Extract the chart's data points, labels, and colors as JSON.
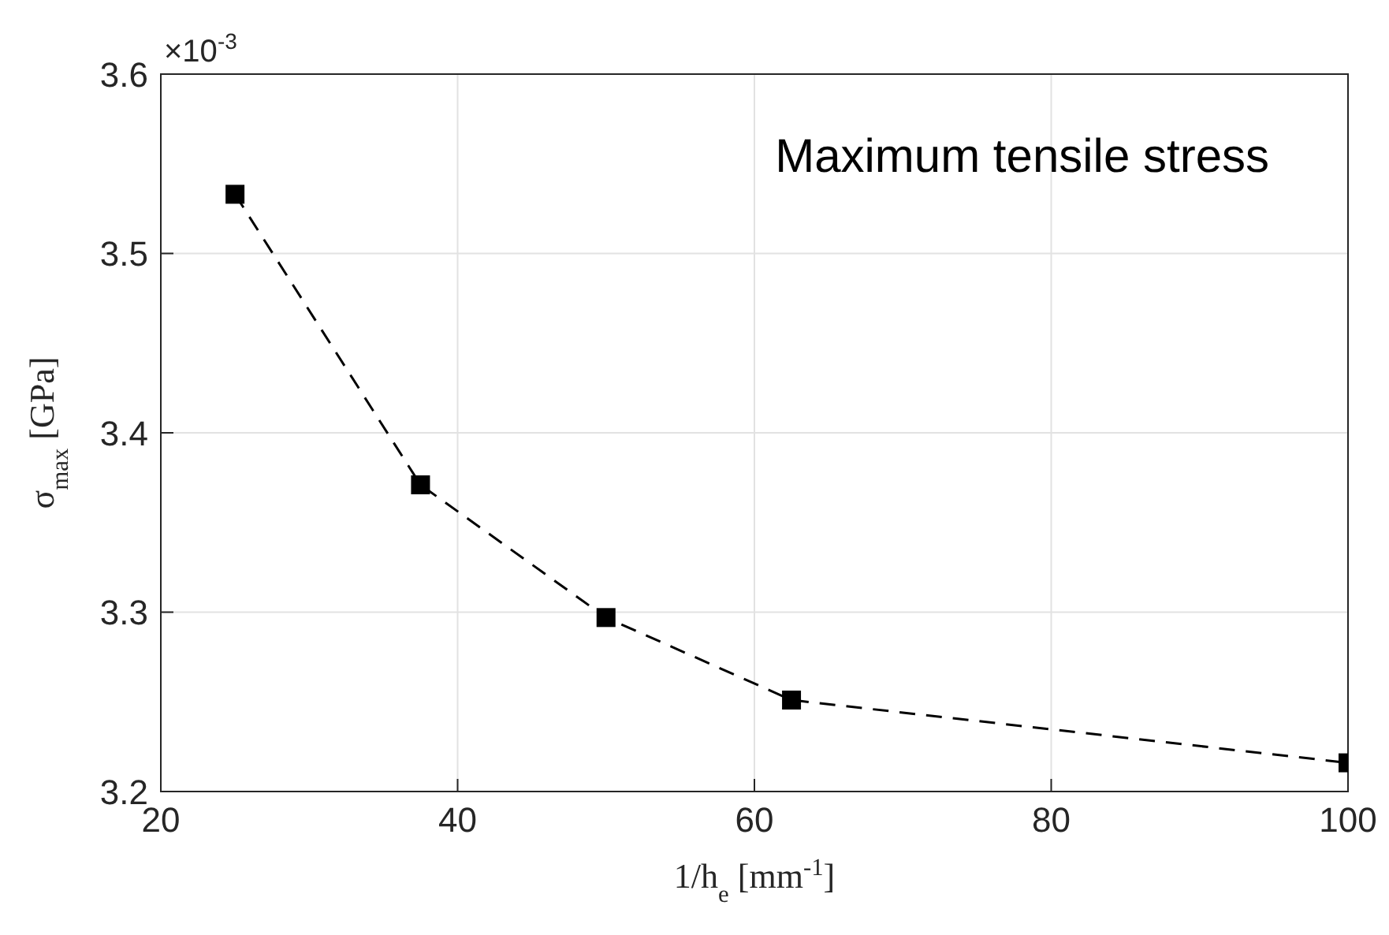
{
  "chart_data": {
    "type": "line",
    "title": "Maximum tensile stress",
    "xlabel": "1/h$_{e}$ [mm$^{-1}$]",
    "ylabel": "σ$_{max}$ [GPa]",
    "annotations": [
      "×10$^{-3}$"
    ],
    "x": [
      25,
      37.5,
      50,
      62.5,
      100
    ],
    "series": [
      {
        "color": "#000000",
        "values": [
          3.533,
          3.371,
          3.297,
          3.251,
          3.216
        ]
      }
    ],
    "xlim": [
      20,
      100
    ],
    "xticks": [
      20,
      40,
      60,
      80,
      100
    ],
    "ylim": [
      3.2,
      3.6
    ],
    "yticks": [
      3.2,
      3.3,
      3.4,
      3.5,
      3.6
    ],
    "grid": true,
    "marker": "square",
    "line_style": "dashed"
  }
}
